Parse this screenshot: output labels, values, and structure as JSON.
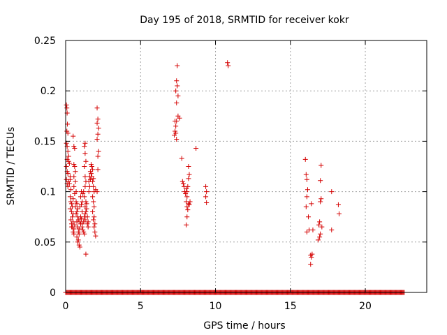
{
  "chart_data": {
    "type": "scatter",
    "title": "Day 195 of 2018, SRMTID for receiver kokr",
    "xlabel": "GPS time / hours",
    "ylabel": "SRMTID / TECUs",
    "xlim": [
      0,
      24.1
    ],
    "ylim": [
      0,
      0.25
    ],
    "xticks": [
      0,
      5,
      10,
      15,
      20
    ],
    "xtick_labels": [
      "0",
      "5",
      "10",
      "15",
      "20"
    ],
    "yticks": [
      0,
      0.05,
      0.1,
      0.15,
      0.2,
      0.25
    ],
    "ytick_labels": [
      "0",
      "0.05",
      "0.1",
      "0.15",
      "0.2",
      "0.25"
    ],
    "grid": true,
    "marker": "plus",
    "color": "#d40000",
    "zero_band": {
      "x_start": 0.0,
      "x_end": 22.6,
      "step": 0.05,
      "y": 0
    },
    "points": [
      [
        0.05,
        0.186
      ],
      [
        0.08,
        0.183
      ],
      [
        0.1,
        0.178
      ],
      [
        0.12,
        0.167
      ],
      [
        0.08,
        0.16
      ],
      [
        0.15,
        0.158
      ],
      [
        0.05,
        0.148
      ],
      [
        0.1,
        0.145
      ],
      [
        0.15,
        0.14
      ],
      [
        0.2,
        0.135
      ],
      [
        0.1,
        0.132
      ],
      [
        0.05,
        0.125
      ],
      [
        0.1,
        0.12
      ],
      [
        0.15,
        0.118
      ],
      [
        0.05,
        0.112
      ],
      [
        0.1,
        0.108
      ],
      [
        0.15,
        0.105
      ],
      [
        0.2,
        0.13
      ],
      [
        0.25,
        0.128
      ],
      [
        0.3,
        0.115
      ],
      [
        0.2,
        0.11
      ],
      [
        0.3,
        0.112
      ],
      [
        0.25,
        0.108
      ],
      [
        0.35,
        0.102
      ],
      [
        0.3,
        0.095
      ],
      [
        0.35,
        0.09
      ],
      [
        0.4,
        0.088
      ],
      [
        0.45,
        0.085
      ],
      [
        0.3,
        0.083
      ],
      [
        0.4,
        0.08
      ],
      [
        0.5,
        0.078
      ],
      [
        0.45,
        0.075
      ],
      [
        0.35,
        0.072
      ],
      [
        0.5,
        0.07
      ],
      [
        0.4,
        0.068
      ],
      [
        0.45,
        0.065
      ],
      [
        0.55,
        0.063
      ],
      [
        0.5,
        0.06
      ],
      [
        0.55,
        0.058
      ],
      [
        0.6,
        0.067
      ],
      [
        0.4,
        0.065
      ],
      [
        0.5,
        0.155
      ],
      [
        0.55,
        0.145
      ],
      [
        0.6,
        0.143
      ],
      [
        0.55,
        0.127
      ],
      [
        0.6,
        0.125
      ],
      [
        0.65,
        0.12
      ],
      [
        0.55,
        0.115
      ],
      [
        0.65,
        0.11
      ],
      [
        0.55,
        0.105
      ],
      [
        0.7,
        0.1
      ],
      [
        0.6,
        0.098
      ],
      [
        0.5,
        0.093
      ],
      [
        0.7,
        0.09
      ],
      [
        0.75,
        0.088
      ],
      [
        0.65,
        0.085
      ],
      [
        0.8,
        0.083
      ],
      [
        0.75,
        0.08
      ],
      [
        0.7,
        0.078
      ],
      [
        0.8,
        0.075
      ],
      [
        0.85,
        0.072
      ],
      [
        0.75,
        0.07
      ],
      [
        0.8,
        0.065
      ],
      [
        0.85,
        0.06
      ],
      [
        0.9,
        0.058
      ],
      [
        0.75,
        0.055
      ],
      [
        0.85,
        0.052
      ],
      [
        0.8,
        0.05
      ],
      [
        0.9,
        0.047
      ],
      [
        0.95,
        0.045
      ],
      [
        0.9,
        0.063
      ],
      [
        1.0,
        0.068
      ],
      [
        0.95,
        0.07
      ],
      [
        1.05,
        0.073
      ],
      [
        1.0,
        0.075
      ],
      [
        1.1,
        0.08
      ],
      [
        0.95,
        0.085
      ],
      [
        1.05,
        0.087
      ],
      [
        1.1,
        0.09
      ],
      [
        1.0,
        0.095
      ],
      [
        1.15,
        0.098
      ],
      [
        1.05,
        0.1
      ],
      [
        1.1,
        0.065
      ],
      [
        1.15,
        0.062
      ],
      [
        1.2,
        0.06
      ],
      [
        1.25,
        0.058
      ],
      [
        1.1,
        0.068
      ],
      [
        1.2,
        0.07
      ],
      [
        1.3,
        0.072
      ],
      [
        1.25,
        0.075
      ],
      [
        1.3,
        0.078
      ],
      [
        1.35,
        0.08
      ],
      [
        1.4,
        0.083
      ],
      [
        1.3,
        0.085
      ],
      [
        1.4,
        0.088
      ],
      [
        1.35,
        0.09
      ],
      [
        1.25,
        0.095
      ],
      [
        1.2,
        0.1
      ],
      [
        1.3,
        0.105
      ],
      [
        1.35,
        0.11
      ],
      [
        1.3,
        0.115
      ],
      [
        1.25,
        0.125
      ],
      [
        1.35,
        0.13
      ],
      [
        1.3,
        0.138
      ],
      [
        1.25,
        0.145
      ],
      [
        1.3,
        0.148
      ],
      [
        1.35,
        0.038
      ],
      [
        1.45,
        0.075
      ],
      [
        1.5,
        0.07
      ],
      [
        1.45,
        0.068
      ],
      [
        1.5,
        0.065
      ],
      [
        1.55,
        0.1
      ],
      [
        1.6,
        0.105
      ],
      [
        1.55,
        0.11
      ],
      [
        1.65,
        0.112
      ],
      [
        1.6,
        0.115
      ],
      [
        1.7,
        0.118
      ],
      [
        1.65,
        0.12
      ],
      [
        1.75,
        0.125
      ],
      [
        1.7,
        0.127
      ],
      [
        1.8,
        0.122
      ],
      [
        1.75,
        0.115
      ],
      [
        1.85,
        0.113
      ],
      [
        1.8,
        0.11
      ],
      [
        1.85,
        0.105
      ],
      [
        1.9,
        0.1
      ],
      [
        1.8,
        0.095
      ],
      [
        1.85,
        0.09
      ],
      [
        1.9,
        0.085
      ],
      [
        1.8,
        0.08
      ],
      [
        1.9,
        0.075
      ],
      [
        1.85,
        0.072
      ],
      [
        1.95,
        0.068
      ],
      [
        1.9,
        0.065
      ],
      [
        2.0,
        0.056
      ],
      [
        1.95,
        0.06
      ],
      [
        2.0,
        0.102
      ],
      [
        2.1,
        0.1
      ],
      [
        2.15,
        0.122
      ],
      [
        2.15,
        0.135
      ],
      [
        2.2,
        0.14
      ],
      [
        2.1,
        0.152
      ],
      [
        2.15,
        0.157
      ],
      [
        2.2,
        0.163
      ],
      [
        2.1,
        0.168
      ],
      [
        2.15,
        0.172
      ],
      [
        2.1,
        0.183
      ],
      [
        7.25,
        0.156
      ],
      [
        7.3,
        0.16
      ],
      [
        7.35,
        0.158
      ],
      [
        7.4,
        0.152
      ],
      [
        7.35,
        0.165
      ],
      [
        7.4,
        0.17
      ],
      [
        7.5,
        0.175
      ],
      [
        7.3,
        0.17
      ],
      [
        7.4,
        0.188
      ],
      [
        7.5,
        0.195
      ],
      [
        7.35,
        0.2
      ],
      [
        7.45,
        0.205
      ],
      [
        7.4,
        0.21
      ],
      [
        7.45,
        0.225
      ],
      [
        7.6,
        0.173
      ],
      [
        7.75,
        0.133
      ],
      [
        7.8,
        0.11
      ],
      [
        7.85,
        0.108
      ],
      [
        7.9,
        0.105
      ],
      [
        7.95,
        0.1
      ],
      [
        8.0,
        0.098
      ],
      [
        8.05,
        0.103
      ],
      [
        8.1,
        0.095
      ],
      [
        8.05,
        0.09
      ],
      [
        8.1,
        0.085
      ],
      [
        8.15,
        0.082
      ],
      [
        8.2,
        0.088
      ],
      [
        8.05,
        0.067
      ],
      [
        8.1,
        0.075
      ],
      [
        8.1,
        0.1
      ],
      [
        8.15,
        0.105
      ],
      [
        8.2,
        0.113
      ],
      [
        8.25,
        0.117
      ],
      [
        8.2,
        0.125
      ],
      [
        8.25,
        0.087
      ],
      [
        8.3,
        0.09
      ],
      [
        8.7,
        0.143
      ],
      [
        9.35,
        0.105
      ],
      [
        9.4,
        0.1
      ],
      [
        9.35,
        0.095
      ],
      [
        9.4,
        0.089
      ],
      [
        10.8,
        0.228
      ],
      [
        10.85,
        0.225
      ],
      [
        16.0,
        0.132
      ],
      [
        16.05,
        0.117
      ],
      [
        16.1,
        0.112
      ],
      [
        16.15,
        0.102
      ],
      [
        16.1,
        0.095
      ],
      [
        16.05,
        0.085
      ],
      [
        16.2,
        0.075
      ],
      [
        16.1,
        0.06
      ],
      [
        16.25,
        0.062
      ],
      [
        16.35,
        0.037
      ],
      [
        16.4,
        0.035
      ],
      [
        16.45,
        0.038
      ],
      [
        16.35,
        0.028
      ],
      [
        16.4,
        0.088
      ],
      [
        16.5,
        0.062
      ],
      [
        16.9,
        0.067
      ],
      [
        16.95,
        0.07
      ],
      [
        16.85,
        0.052
      ],
      [
        16.95,
        0.055
      ],
      [
        17.0,
        0.058
      ],
      [
        17.0,
        0.09
      ],
      [
        17.05,
        0.093
      ],
      [
        17.0,
        0.111
      ],
      [
        17.05,
        0.126
      ],
      [
        17.1,
        0.065
      ],
      [
        17.75,
        0.1
      ],
      [
        17.75,
        0.062
      ],
      [
        18.2,
        0.087
      ],
      [
        18.25,
        0.078
      ]
    ]
  }
}
